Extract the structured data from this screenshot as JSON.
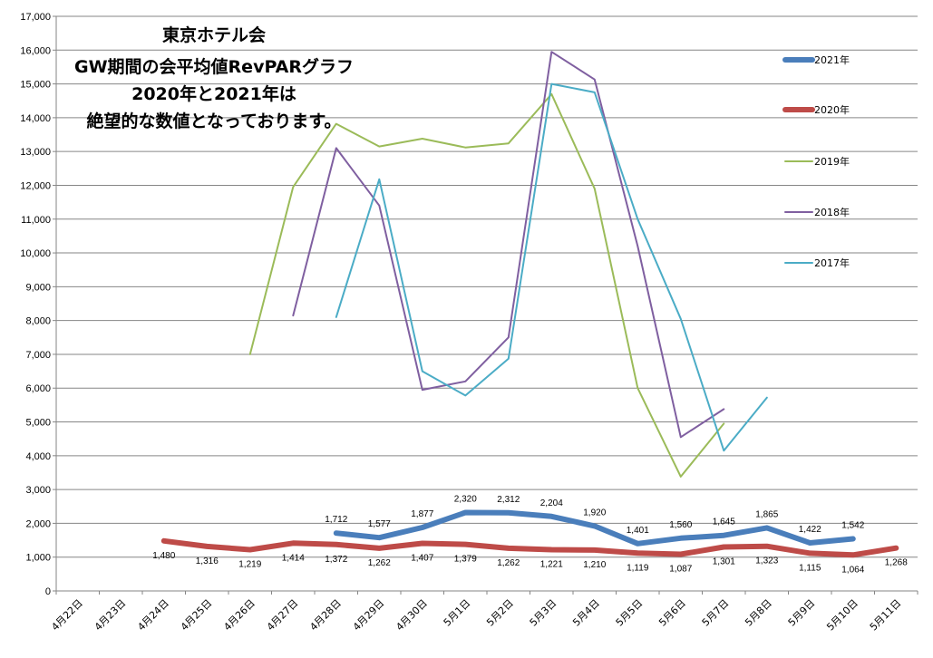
{
  "chart_data": {
    "type": "line",
    "title_lines": [
      "東京ホテル会",
      "GW期間の会平均値RevPARグラフ",
      "2020年と2021年は",
      "絶望的な数値となっております。"
    ],
    "categories": [
      "4月22日",
      "4月23日",
      "4月24日",
      "4月25日",
      "4月26日",
      "4月27日",
      "4月28日",
      "4月29日",
      "4月30日",
      "5月1日",
      "5月2日",
      "5月3日",
      "5月4日",
      "5月5日",
      "5月6日",
      "5月7日",
      "5月8日",
      "5月9日",
      "5月10日",
      "5月11日"
    ],
    "ylim": [
      0,
      17000
    ],
    "yticks": [
      0,
      1000,
      2000,
      3000,
      4000,
      5000,
      6000,
      7000,
      8000,
      9000,
      10000,
      11000,
      12000,
      13000,
      14000,
      15000,
      16000,
      17000
    ],
    "ytick_labels": [
      "0",
      "1,000",
      "2,000",
      "3,000",
      "4,000",
      "5,000",
      "6,000",
      "7,000",
      "8,000",
      "9,000",
      "10,000",
      "11,000",
      "12,000",
      "13,000",
      "14,000",
      "15,000",
      "16,000",
      "17,000"
    ],
    "grid": true,
    "legend_position": "right",
    "series": [
      {
        "name": "2021年",
        "color": "#4a7ebb",
        "width": 6,
        "labeled": true,
        "values": [
          null,
          null,
          null,
          null,
          null,
          null,
          1712,
          1577,
          1877,
          2320,
          2312,
          2204,
          1920,
          1401,
          1560,
          1645,
          1865,
          1422,
          1542,
          null
        ],
        "labels": [
          null,
          null,
          null,
          null,
          null,
          null,
          "1,712",
          "1,577",
          "1,877",
          "2,320",
          "2,312",
          "2,204",
          "1,920",
          "1,401",
          "1,560",
          "1,645",
          "1,865",
          "1,422",
          "1,542",
          null
        ]
      },
      {
        "name": "2020年",
        "color": "#be4b48",
        "width": 6,
        "labeled": true,
        "values": [
          null,
          null,
          1480,
          1316,
          1219,
          1414,
          1372,
          1262,
          1407,
          1379,
          1262,
          1221,
          1210,
          1119,
          1087,
          1301,
          1323,
          1115,
          1064,
          1268
        ],
        "labels": [
          null,
          null,
          "1,480",
          "1,316",
          "1,219",
          "1,414",
          "1,372",
          "1,262",
          "1,407",
          "1,379",
          "1,262",
          "1,221",
          "1,210",
          "1,119",
          "1,087",
          "1,301",
          "1,323",
          "1,115",
          "1,064",
          "1,268"
        ]
      },
      {
        "name": "2019年",
        "color": "#9bbb59",
        "width": 2,
        "labeled": false,
        "values": [
          null,
          null,
          null,
          null,
          7000,
          11950,
          13820,
          13150,
          13380,
          13120,
          13240,
          14700,
          11900,
          6000,
          3380,
          4950,
          null,
          null,
          null,
          null
        ]
      },
      {
        "name": "2018年",
        "color": "#7f5fa0",
        "width": 2,
        "labeled": false,
        "values": [
          null,
          null,
          null,
          null,
          null,
          8150,
          13100,
          11400,
          5950,
          6200,
          7500,
          15950,
          15130,
          10200,
          4550,
          5380,
          null,
          null,
          null,
          null
        ]
      },
      {
        "name": "2017年",
        "color": "#4bacc6",
        "width": 2,
        "labeled": false,
        "values": [
          null,
          null,
          null,
          null,
          null,
          null,
          8100,
          12180,
          6500,
          5780,
          6870,
          15000,
          14750,
          11000,
          8050,
          4150,
          5720,
          null,
          null,
          null
        ]
      }
    ]
  }
}
